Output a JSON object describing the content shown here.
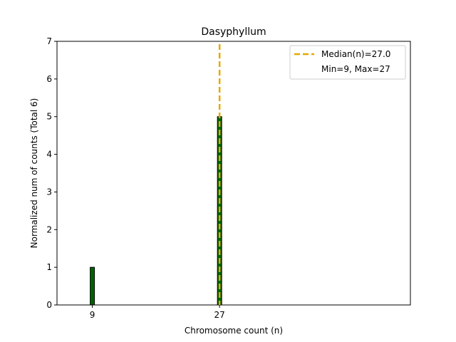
{
  "chart_data": {
    "type": "bar",
    "title": "Dasyphyllum",
    "xlabel": "Chromosome count (n)",
    "ylabel": "Normalized num of counts     (Total 6)",
    "xlim": [
      4,
      54
    ],
    "ylim": [
      0,
      7
    ],
    "x_ticks": [
      9,
      27
    ],
    "y_ticks": [
      0,
      1,
      2,
      3,
      4,
      5,
      6,
      7
    ],
    "bars": [
      {
        "x": 9,
        "value": 1
      },
      {
        "x": 27,
        "value": 5
      }
    ],
    "bar_width": 0.6,
    "bar_color": "#006400",
    "bar_edge_color": "#000000",
    "median": 27.0,
    "median_color": "#e6a800",
    "legend_position": "top-right",
    "legend": [
      {
        "label": "Median(n)=27.0",
        "style": "dashed-line"
      },
      {
        "label": "Min=9, Max=27",
        "style": "none"
      }
    ],
    "grid": false
  }
}
